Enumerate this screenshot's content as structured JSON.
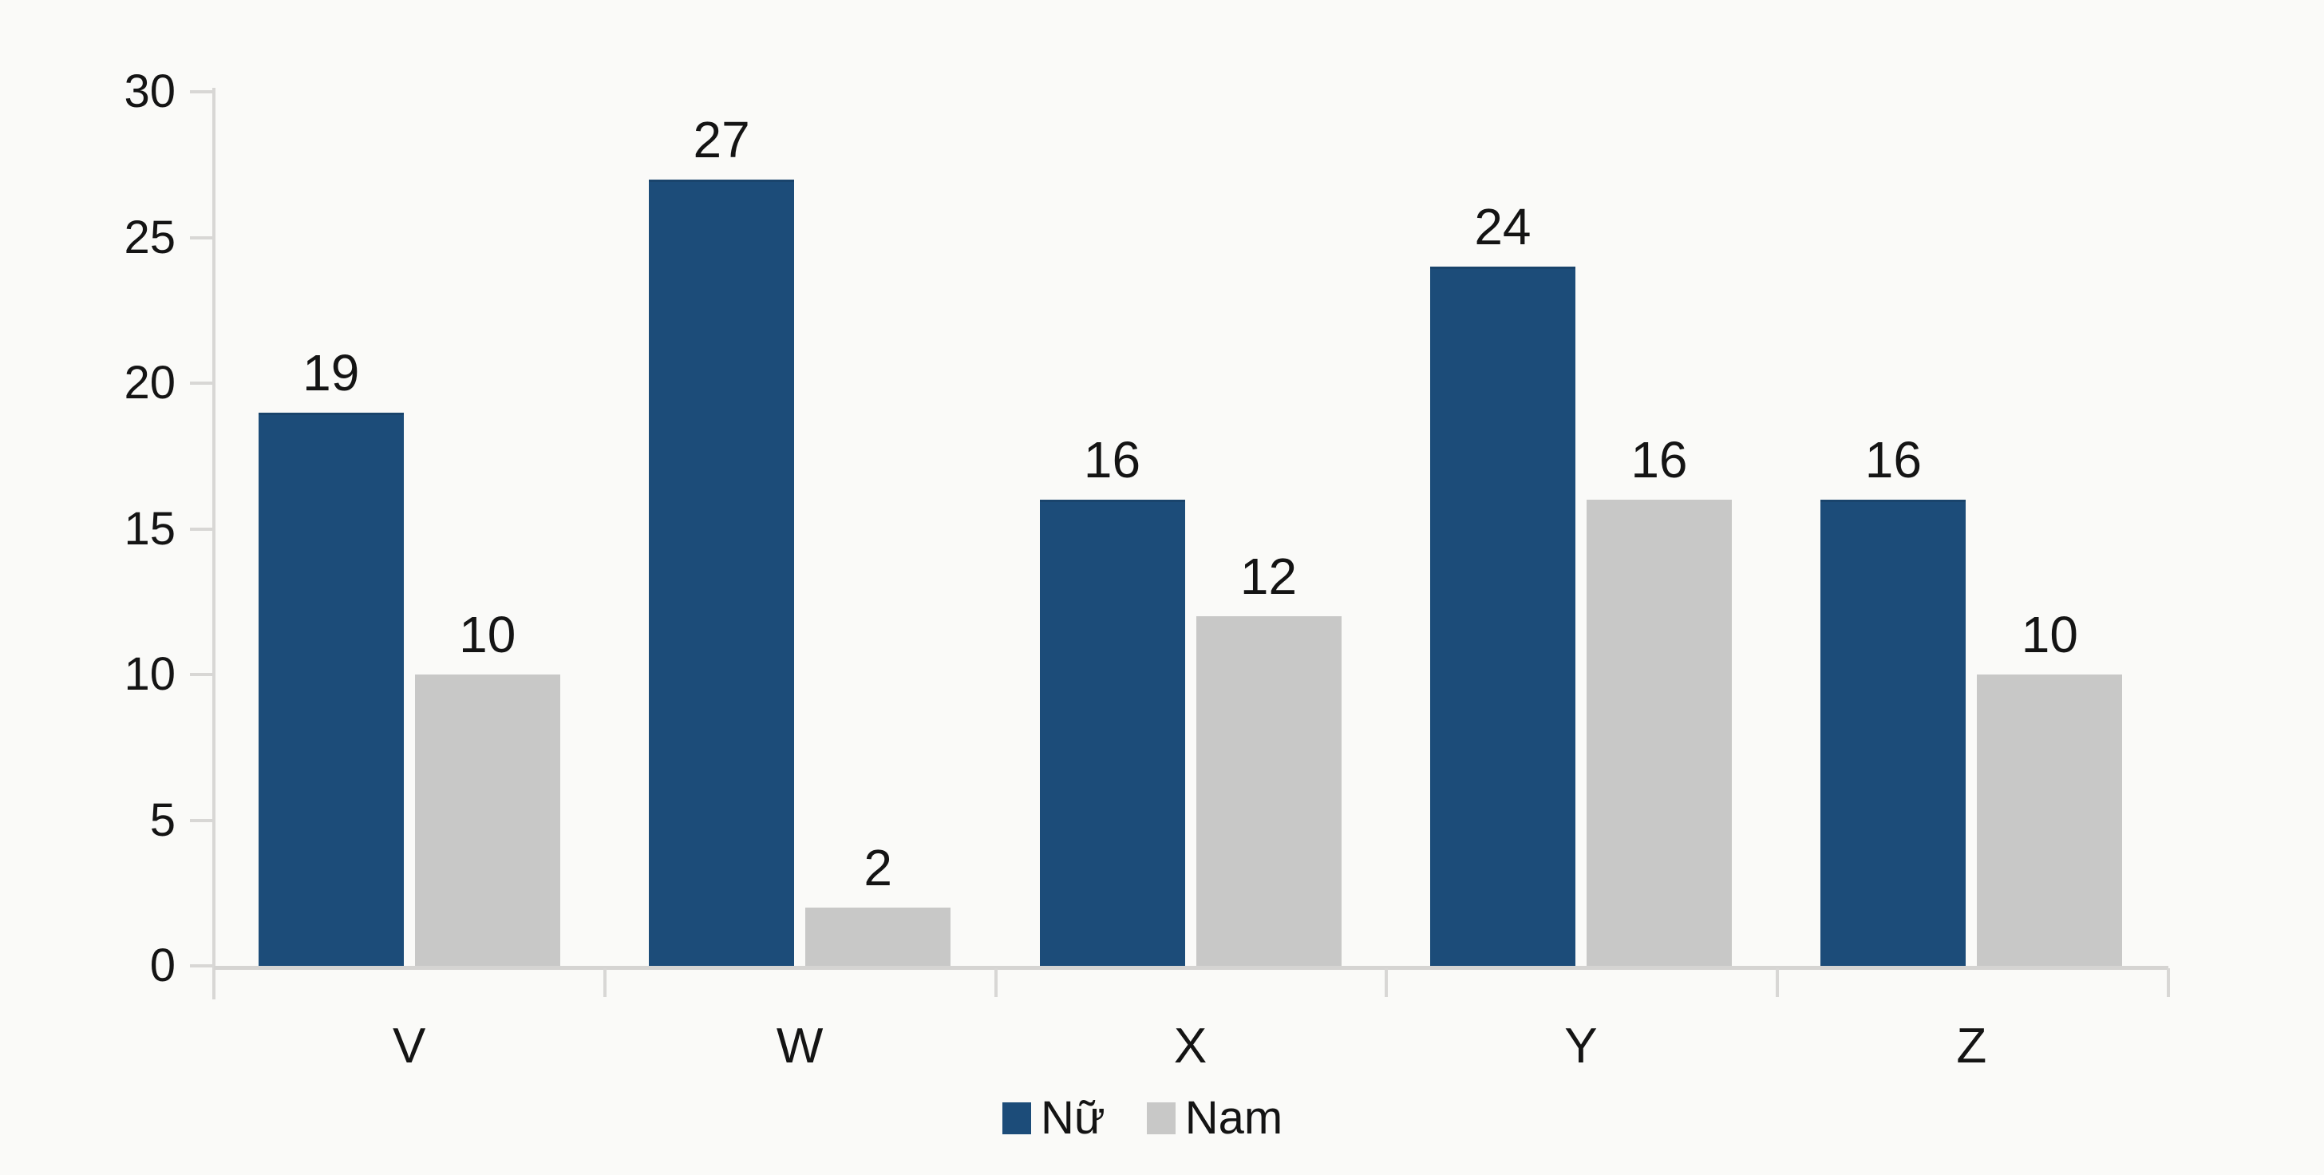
{
  "chart_data": {
    "type": "bar",
    "categories": [
      "V",
      "W",
      "X",
      "Y",
      "Z"
    ],
    "series": [
      {
        "name": "Nữ",
        "values": [
          19,
          27,
          16,
          24,
          16
        ],
        "color": "#1c4c79"
      },
      {
        "name": "Nam",
        "values": [
          10,
          2,
          12,
          16,
          10
        ],
        "color": "#c8c8c7"
      }
    ],
    "title": "",
    "xlabel": "",
    "ylabel": "",
    "ylim": [
      0,
      30
    ],
    "yticks": [
      0,
      5,
      10,
      15,
      20,
      25,
      30
    ],
    "grid": false,
    "legend_position": "bottom",
    "value_labels": true
  },
  "colors": {
    "background": "#fafaf8",
    "axis": "#d8d7d5",
    "text": "#141414"
  }
}
